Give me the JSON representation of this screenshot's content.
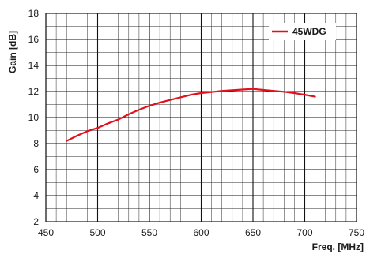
{
  "chart_data": {
    "type": "line",
    "xlabel": "Freq. [MHz]",
    "ylabel": "Gain [dB]",
    "xlim": [
      450,
      750
    ],
    "ylim": [
      2,
      18
    ],
    "x_major_ticks": [
      450,
      500,
      550,
      600,
      650,
      700,
      750
    ],
    "y_major_ticks": [
      2,
      4,
      6,
      8,
      10,
      12,
      14,
      16,
      18
    ],
    "x_minor_step": 10,
    "y_minor_step": 1,
    "grid": true,
    "legend_position": "top-right",
    "series_color": "#e3101b",
    "series": [
      {
        "name": "45WDG",
        "x": [
          470,
          480,
          490,
          500,
          510,
          520,
          530,
          540,
          550,
          560,
          570,
          580,
          590,
          600,
          610,
          620,
          630,
          640,
          650,
          660,
          670,
          680,
          690,
          700,
          710
        ],
        "values": [
          8.2,
          8.6,
          8.95,
          9.2,
          9.55,
          9.85,
          10.25,
          10.6,
          10.9,
          11.15,
          11.35,
          11.55,
          11.75,
          11.88,
          11.96,
          12.05,
          12.1,
          12.15,
          12.2,
          12.12,
          12.05,
          11.98,
          11.88,
          11.75,
          11.6
        ]
      }
    ]
  }
}
